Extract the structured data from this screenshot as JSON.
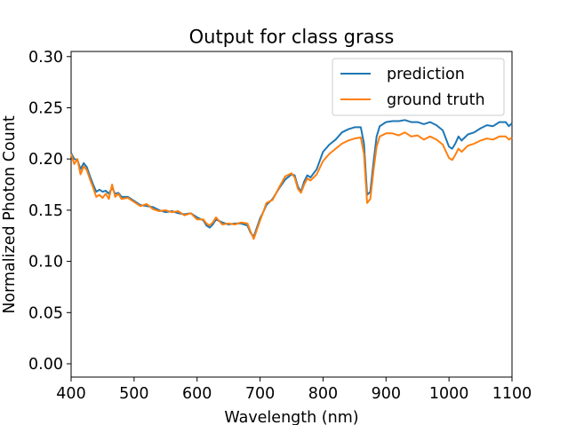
{
  "chart_data": {
    "type": "line",
    "title": "Output for class grass",
    "xlabel": "Wavelength (nm)",
    "ylabel": "Normalized Photon Count",
    "xlim": [
      400,
      1100
    ],
    "ylim": [
      -0.013,
      0.305
    ],
    "xticks": [
      400,
      500,
      600,
      700,
      800,
      900,
      1000,
      1100
    ],
    "xtick_labels": [
      "400",
      "500",
      "600",
      "700",
      "800",
      "900",
      "1000",
      "1100"
    ],
    "yticks": [
      0.0,
      0.05,
      0.1,
      0.15,
      0.2,
      0.25,
      0.3
    ],
    "ytick_labels": [
      "0.00",
      "0.05",
      "0.10",
      "0.15",
      "0.20",
      "0.25",
      "0.30"
    ],
    "grid": false,
    "legend_position": "top-right",
    "series": [
      {
        "name": "prediction",
        "color": "#1f77b4",
        "x": [
          400,
          405,
          410,
          415,
          420,
          425,
          430,
          435,
          440,
          445,
          450,
          455,
          460,
          465,
          470,
          475,
          480,
          490,
          500,
          510,
          520,
          530,
          540,
          550,
          560,
          570,
          580,
          590,
          600,
          610,
          615,
          620,
          625,
          630,
          640,
          650,
          660,
          670,
          680,
          685,
          690,
          695,
          700,
          705,
          710,
          720,
          730,
          740,
          750,
          755,
          760,
          765,
          770,
          775,
          780,
          790,
          800,
          810,
          820,
          830,
          840,
          850,
          860,
          865,
          870,
          875,
          880,
          885,
          890,
          900,
          910,
          920,
          930,
          940,
          950,
          960,
          970,
          980,
          990,
          1000,
          1005,
          1010,
          1015,
          1020,
          1030,
          1040,
          1050,
          1060,
          1070,
          1080,
          1090,
          1095,
          1100
        ],
        "y": [
          0.206,
          0.2,
          0.199,
          0.19,
          0.196,
          0.192,
          0.183,
          0.175,
          0.168,
          0.17,
          0.168,
          0.169,
          0.166,
          0.172,
          0.166,
          0.167,
          0.163,
          0.163,
          0.159,
          0.155,
          0.154,
          0.153,
          0.15,
          0.148,
          0.149,
          0.147,
          0.146,
          0.147,
          0.143,
          0.14,
          0.135,
          0.133,
          0.136,
          0.141,
          0.138,
          0.136,
          0.137,
          0.137,
          0.135,
          0.128,
          0.124,
          0.133,
          0.142,
          0.148,
          0.155,
          0.161,
          0.171,
          0.18,
          0.185,
          0.184,
          0.173,
          0.168,
          0.178,
          0.184,
          0.182,
          0.19,
          0.207,
          0.214,
          0.219,
          0.226,
          0.229,
          0.231,
          0.231,
          0.215,
          0.165,
          0.168,
          0.196,
          0.222,
          0.232,
          0.236,
          0.237,
          0.237,
          0.238,
          0.236,
          0.236,
          0.234,
          0.236,
          0.233,
          0.228,
          0.212,
          0.21,
          0.215,
          0.222,
          0.218,
          0.224,
          0.226,
          0.23,
          0.233,
          0.232,
          0.236,
          0.236,
          0.232,
          0.235
        ]
      },
      {
        "name": "ground truth",
        "color": "#ff7f0e",
        "x": [
          400,
          405,
          410,
          415,
          420,
          425,
          430,
          435,
          440,
          445,
          450,
          455,
          460,
          465,
          470,
          475,
          480,
          490,
          500,
          510,
          520,
          530,
          540,
          550,
          560,
          570,
          580,
          590,
          600,
          610,
          615,
          620,
          625,
          630,
          640,
          650,
          660,
          670,
          680,
          685,
          690,
          695,
          700,
          705,
          710,
          720,
          730,
          740,
          750,
          755,
          760,
          765,
          770,
          775,
          780,
          790,
          800,
          810,
          820,
          830,
          840,
          850,
          860,
          865,
          870,
          875,
          880,
          885,
          890,
          900,
          910,
          920,
          930,
          940,
          950,
          960,
          970,
          980,
          990,
          1000,
          1005,
          1010,
          1015,
          1020,
          1030,
          1040,
          1050,
          1060,
          1070,
          1080,
          1090,
          1095,
          1100
        ],
        "y": [
          0.205,
          0.195,
          0.2,
          0.185,
          0.193,
          0.189,
          0.18,
          0.172,
          0.163,
          0.165,
          0.162,
          0.166,
          0.161,
          0.175,
          0.163,
          0.166,
          0.161,
          0.162,
          0.158,
          0.154,
          0.156,
          0.151,
          0.149,
          0.15,
          0.148,
          0.149,
          0.145,
          0.147,
          0.141,
          0.141,
          0.137,
          0.135,
          0.138,
          0.143,
          0.136,
          0.137,
          0.136,
          0.138,
          0.137,
          0.129,
          0.122,
          0.131,
          0.14,
          0.148,
          0.157,
          0.16,
          0.172,
          0.183,
          0.186,
          0.182,
          0.171,
          0.167,
          0.175,
          0.181,
          0.179,
          0.185,
          0.198,
          0.205,
          0.21,
          0.215,
          0.218,
          0.22,
          0.221,
          0.205,
          0.157,
          0.161,
          0.188,
          0.212,
          0.222,
          0.225,
          0.225,
          0.223,
          0.226,
          0.222,
          0.223,
          0.219,
          0.222,
          0.219,
          0.214,
          0.201,
          0.199,
          0.204,
          0.21,
          0.207,
          0.213,
          0.215,
          0.218,
          0.22,
          0.219,
          0.222,
          0.222,
          0.219,
          0.221
        ]
      }
    ]
  }
}
